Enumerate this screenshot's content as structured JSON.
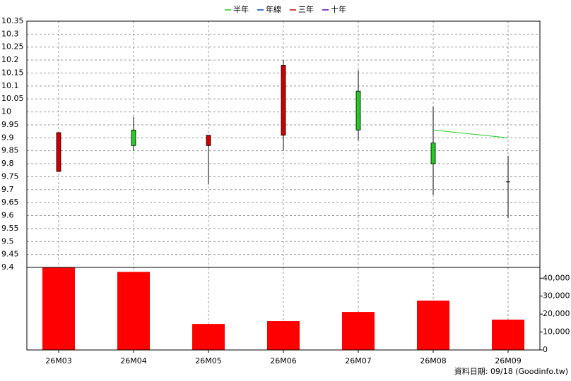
{
  "chart_data": [
    {
      "type": "candlestick",
      "open": [
        9.77,
        9.93,
        9.87,
        9.91,
        10.08,
        9.88,
        9.73
      ],
      "high": [
        9.92,
        9.98,
        9.91,
        10.2,
        10.16,
        10.02,
        9.83
      ],
      "low": [
        9.77,
        9.85,
        9.72,
        9.85,
        9.89,
        9.68,
        9.59
      ],
      "close": [
        9.92,
        9.87,
        9.91,
        10.18,
        9.93,
        9.8,
        9.73
      ],
      "up_color": "#cc0000",
      "down_color": "#22cc22",
      "flat_color": "#000000",
      "series": [
        {
          "name": "半年",
          "color": "#22cc22",
          "values": [
            null,
            null,
            null,
            null,
            null,
            9.93,
            9.9
          ]
        },
        {
          "name": "年線",
          "color": "#0044cc",
          "values": [
            null,
            null,
            null,
            null,
            null,
            null,
            null
          ]
        },
        {
          "name": "三年",
          "color": "#cc0000",
          "values": [
            null,
            null,
            null,
            null,
            null,
            null,
            null
          ]
        },
        {
          "name": "十年",
          "color": "#6600aa",
          "values": [
            null,
            null,
            null,
            null,
            null,
            null,
            null
          ]
        }
      ],
      "ylim": [
        9.4,
        10.35
      ],
      "yticks": [
        9.4,
        9.45,
        9.5,
        9.55,
        9.6,
        9.65,
        9.7,
        9.75,
        9.8,
        9.85,
        9.9,
        9.95,
        10,
        10.05,
        10.1,
        10.15,
        10.2,
        10.25,
        10.3,
        10.35
      ],
      "grid": true,
      "legend": "top"
    },
    {
      "type": "bar",
      "categories": [
        "26M03",
        "26M04",
        "26M05",
        "26M06",
        "26M07",
        "26M08",
        "26M09"
      ],
      "values": [
        45900,
        43500,
        14500,
        16100,
        21200,
        27500,
        16900
      ],
      "color": "#ff0000",
      "ylim": [
        0,
        46000
      ],
      "yticks": [
        0,
        {
          "value": 10000,
          "label": "10,000"
        },
        {
          "value": 20000,
          "label": "20,000"
        },
        {
          "value": 30000,
          "label": "30,000"
        },
        {
          "value": 40000,
          "label": "40,000"
        }
      ],
      "grid": true
    }
  ],
  "footer": "資料日期: 09/18  (Goodinfo.tw)"
}
